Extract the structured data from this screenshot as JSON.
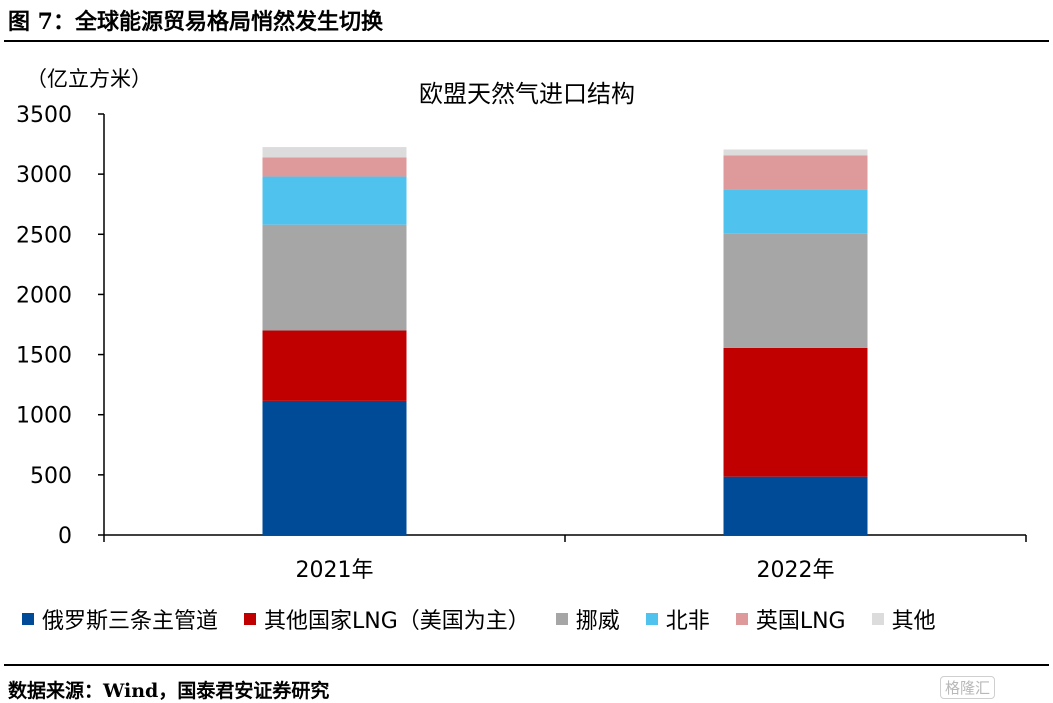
{
  "page": {
    "title": "图 7：全球能源贸易格局悄然发生切换",
    "source": "数据来源：Wind，国泰君安证券研究",
    "watermark": "格隆汇"
  },
  "chart_data": {
    "type": "bar",
    "stacked": true,
    "title": "欧盟天然气进口结构",
    "unit_label": "（亿立方米）",
    "categories": [
      "2021年",
      "2022年"
    ],
    "ylim": [
      0,
      3500
    ],
    "yticks": [
      0,
      500,
      1000,
      1500,
      2000,
      2500,
      3000,
      3500
    ],
    "grid": false,
    "legend_position": "bottom",
    "series": [
      {
        "name": "俄罗斯三条主管道",
        "color": "#004B98",
        "values": [
          1115,
          485
        ]
      },
      {
        "name": "其他国家LNG（美国为主）",
        "color": "#C00000",
        "values": [
          585,
          1070
        ]
      },
      {
        "name": "挪威",
        "color": "#A6A6A6",
        "values": [
          880,
          950
        ]
      },
      {
        "name": "北非",
        "color": "#4FC3EE",
        "values": [
          400,
          370
        ]
      },
      {
        "name": "英国LNG",
        "color": "#DE9A9A",
        "values": [
          160,
          280
        ]
      },
      {
        "name": "其他",
        "color": "#DCDCDC",
        "values": [
          85,
          50
        ]
      }
    ]
  }
}
